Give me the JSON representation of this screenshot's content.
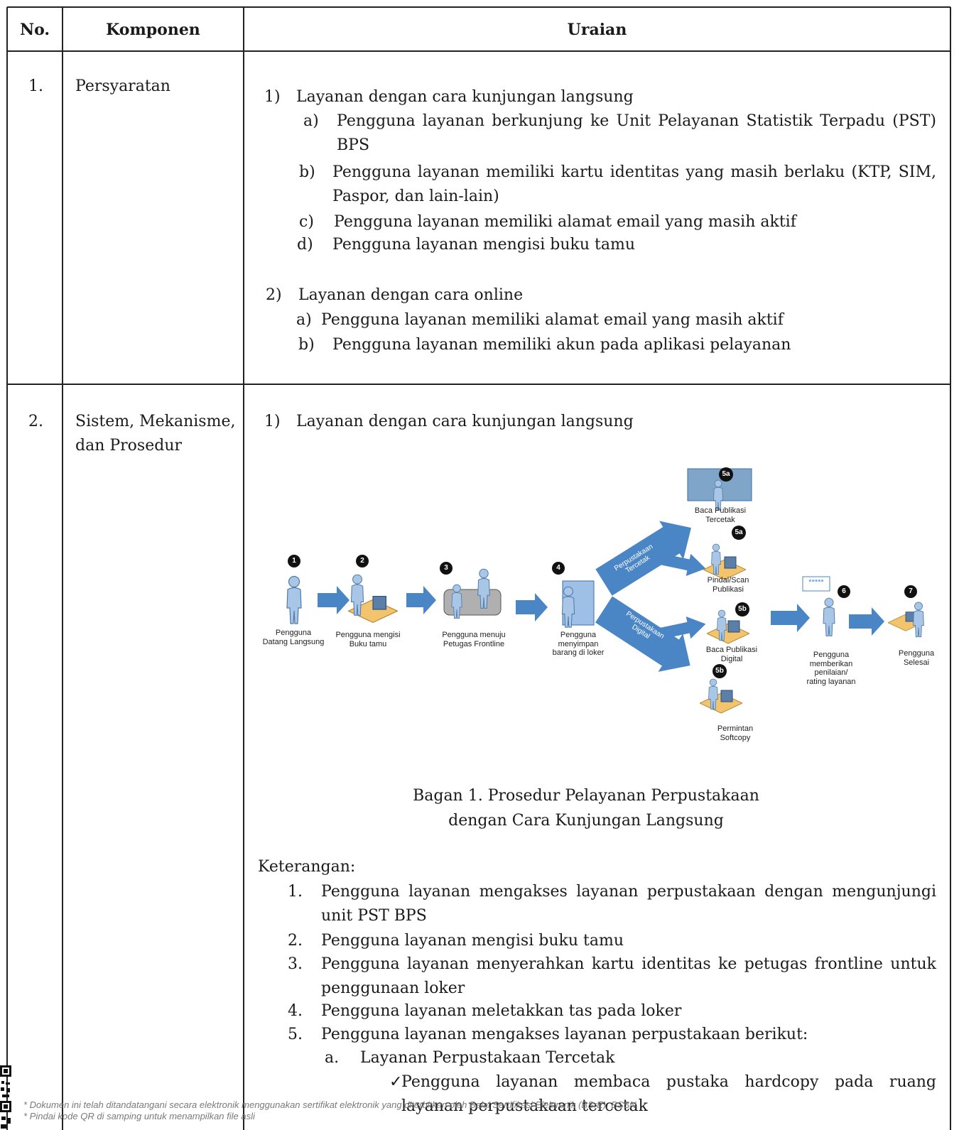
{
  "table": {
    "header": [
      "No.",
      "Komponen",
      "Uraian"
    ],
    "rows": [
      {
        "no": "1.",
        "component": "Persyaratan",
        "content": {
          "sections": [
            {
              "marker": "1)",
              "title": "Layanan dengan cara kunjungan langsung",
              "items": [
                {
                  "marker": "a)",
                  "text": "Pengguna layanan berkunjung ke Unit Pelayanan Statistik Terpadu (PST) BPS"
                },
                {
                  "marker": "b)",
                  "text": "Pengguna layanan memiliki kartu identitas yang masih berlaku (KTP, SIM, Paspor, dan lain-lain)"
                },
                {
                  "marker": "c)",
                  "text": "Pengguna layanan memiliki alamat email yang masih aktif"
                },
                {
                  "marker": "d)",
                  "text": "Pengguna layanan mengisi buku tamu"
                }
              ]
            },
            {
              "marker": "2)",
              "title": "Layanan dengan cara online",
              "items": [
                {
                  "marker": "a)",
                  "text": "Pengguna layanan memiliki alamat email yang masih aktif"
                },
                {
                  "marker": "b)",
                  "text": "Pengguna layanan memiliki akun pada aplikasi pelayanan"
                }
              ]
            }
          ]
        }
      },
      {
        "no": "2.",
        "component": "Sistem, Mekanisme, dan Prosedur",
        "content": {
          "section": {
            "marker": "1)",
            "title": "Layanan dengan cara kunjungan langsung"
          },
          "diagram": {
            "steps": [
              {
                "badge": "1",
                "label": "Pengguna\nDatang Langsung"
              },
              {
                "badge": "2",
                "label": "Pengguna mengisi\nBuku tamu"
              },
              {
                "badge": "3",
                "label": "Pengguna menuju\nPetugas Frontline"
              },
              {
                "badge": "4",
                "label": "Pengguna\nmenyimpan\nbarang di loker"
              },
              {
                "badge": "5a",
                "label": "Baca Publikasi\nTercetak"
              },
              {
                "badge": "5a",
                "label": "Pindai/Scan\nPublikasi"
              },
              {
                "badge": "5b",
                "label": "Baca Publikasi\nDigital"
              },
              {
                "badge": "5b",
                "label": "Permintan\nSoftcopy"
              },
              {
                "badge": "6",
                "label": "Pengguna\nmemberikan\npenilaian/\nrating layanan"
              },
              {
                "badge": "7",
                "label": "Pengguna\nSelesai"
              }
            ],
            "arrow_labels": [
              "Perpustakaan\nTercetak",
              "Perpustakaan\nDigital"
            ],
            "rating": "*****"
          },
          "caption": "Bagan 1. Prosedur Pelayanan Perpustakaan\ndengan Cara Kunjungan Langsung",
          "notes_title": "Keterangan:",
          "notes": [
            {
              "marker": "1.",
              "text": "Pengguna layanan mengakses layanan perpustakaan dengan mengunjungi unit PST BPS"
            },
            {
              "marker": "2.",
              "text": "Pengguna layanan mengisi buku tamu"
            },
            {
              "marker": "3.",
              "text": "Pengguna layanan menyerahkan kartu identitas ke petugas frontline untuk penggunaan loker"
            },
            {
              "marker": "4.",
              "text": "Pengguna layanan meletakkan tas pada loker"
            },
            {
              "marker": "5.",
              "text": "Pengguna layanan mengakses layanan perpustakaan berikut:",
              "sub": [
                {
                  "marker": "a.",
                  "text": "Layanan Perpustakaan Tercetak",
                  "items": [
                    {
                      "marker": "✓",
                      "text": "Pengguna layanan membaca pustaka hardcopy pada ruang layanan perpustakaan tercetak"
                    }
                  ]
                }
              ]
            }
          ]
        }
      }
    ]
  },
  "footer": [
    "* Dokumen ini telah ditandatangani secara elektronik menggunakan sertifikat elektronik yang diterbitkan oleh Balai Sertifikasi Elektronik (BSrE), BSSN",
    "* Pindai kode QR di samping untuk menampilkan file asli"
  ]
}
